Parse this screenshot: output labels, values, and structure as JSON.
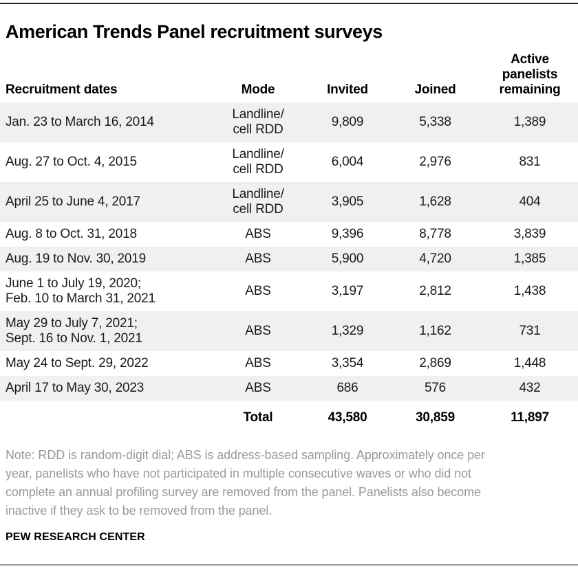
{
  "title": "American Trends Panel recruitment surveys",
  "colors": {
    "row_shade": "#f0f0f0",
    "top_rule": "#222222",
    "bottom_rule": "#9a9a9a",
    "note_text": "#9a9a9a",
    "body_text": "#1a1a1a"
  },
  "chart_data": {
    "type": "table",
    "title": "American Trends Panel recruitment surveys",
    "columns": [
      "Recruitment dates",
      "Mode",
      "Invited",
      "Joined",
      "Active\npanelists\nremaining"
    ],
    "rows": [
      {
        "dates": "Jan. 23 to March 16, 2014",
        "mode": "Landline/\ncell RDD",
        "invited": "9,809",
        "joined": "5,338",
        "active": "1,389"
      },
      {
        "dates": "Aug. 27 to Oct. 4, 2015",
        "mode": "Landline/\ncell RDD",
        "invited": "6,004",
        "joined": "2,976",
        "active": "831"
      },
      {
        "dates": "April 25 to June 4, 2017",
        "mode": "Landline/\ncell RDD",
        "invited": "3,905",
        "joined": "1,628",
        "active": "404"
      },
      {
        "dates": "Aug. 8 to Oct. 31, 2018",
        "mode": "ABS",
        "invited": "9,396",
        "joined": "8,778",
        "active": "3,839"
      },
      {
        "dates": "Aug. 19 to Nov. 30, 2019",
        "mode": "ABS",
        "invited": "5,900",
        "joined": "4,720",
        "active": "1,385"
      },
      {
        "dates": "June 1 to July 19, 2020;\nFeb. 10 to March 31, 2021",
        "mode": "ABS",
        "invited": "3,197",
        "joined": "2,812",
        "active": "1,438"
      },
      {
        "dates": "May 29 to July 7, 2021;\nSept. 16 to Nov. 1, 2021",
        "mode": "ABS",
        "invited": "1,329",
        "joined": "1,162",
        "active": "731"
      },
      {
        "dates": "May 24 to Sept. 29, 2022",
        "mode": "ABS",
        "invited": "3,354",
        "joined": "2,869",
        "active": "1,448"
      },
      {
        "dates": "April 17 to May 30, 2023",
        "mode": "ABS",
        "invited": "686",
        "joined": "576",
        "active": "432"
      }
    ],
    "total": {
      "label": "Total",
      "invited": "43,580",
      "joined": "30,859",
      "active": "11,897"
    }
  },
  "note_lines": [
    "Note: RDD is random-digit dial; ABS is address-based sampling. Approximately once per",
    "year, panelists who have not participated in multiple consecutive waves or who did not",
    "complete an annual profiling survey are removed from the panel. Panelists also become",
    "inactive if they ask to be removed from the panel."
  ],
  "source": "PEW RESEARCH CENTER"
}
